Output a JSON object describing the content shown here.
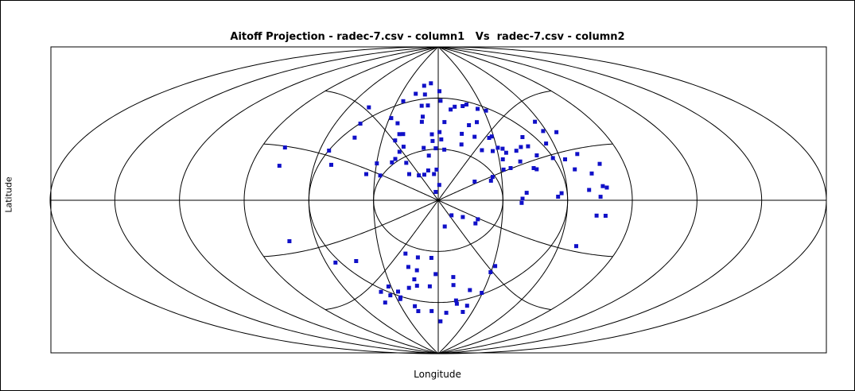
{
  "chart_data": {
    "type": "scatter",
    "projection": "aitoff",
    "title": "Aitoff Projection - radec-7.csv - column1   Vs  radec-7.csv - column2",
    "xlabel": "Longitude",
    "ylabel": "Latitude",
    "grid": true,
    "marker_color": "#1010c8",
    "points_lon_lat": [
      [
        2.4,
        -71.0
      ],
      [
        7.3,
        -66.0
      ],
      [
        9.6,
        -49.7
      ],
      [
        20.9,
        -52.5
      ],
      [
        29.5,
        -53.9
      ],
      [
        -5.8,
        -65.0
      ],
      [
        -17.5,
        -64.9
      ],
      [
        -18.9,
        -62.0
      ],
      [
        -27.0,
        -56.6
      ],
      [
        -26.9,
        -53.2
      ],
      [
        -18.9,
        -51.2
      ],
      [
        -13.5,
        -50.1
      ],
      [
        -14.4,
        -46.3
      ],
      [
        -12.0,
        -41.0
      ],
      [
        -10.7,
        -33.5
      ],
      [
        -3.6,
        -33.8
      ],
      [
        -1.5,
        -43.3
      ],
      [
        -5.4,
        -50.5
      ],
      [
        -16.5,
        -39.0
      ],
      [
        -40.2,
        -59.2
      ],
      [
        -38.3,
        -53.0
      ],
      [
        -33.3,
        -55.2
      ],
      [
        -27.7,
        -57.6
      ],
      [
        -31.7,
        -50.1
      ],
      [
        -16.9,
        -31.2
      ],
      [
        -43.7,
        -34.9
      ],
      [
        -55.0,
        -35.3
      ],
      [
        -73.0,
        -22.5
      ],
      [
        -78.2,
        28.8
      ],
      [
        -76.6,
        18.8
      ],
      [
        -55.3,
        28.1
      ],
      [
        -51.8,
        20.1
      ],
      [
        -44.9,
        35.9
      ],
      [
        -45.6,
        44.0
      ],
      [
        -46.8,
        53.4
      ],
      [
        -25.6,
        57.8
      ],
      [
        -28.9,
        47.8
      ],
      [
        -24.0,
        44.9
      ],
      [
        -21.4,
        38.6
      ],
      [
        -22.9,
        34.9
      ],
      [
        -17.9,
        31.3
      ],
      [
        -19.6,
        28.3
      ],
      [
        -21.2,
        24.1
      ],
      [
        -29.9,
        21.4
      ],
      [
        -34.2,
        15.1
      ],
      [
        -27.5,
        14.4
      ],
      [
        -13.8,
        15.3
      ],
      [
        -9.2,
        14.6
      ],
      [
        -15.6,
        21.9
      ],
      [
        -22.6,
        22.1
      ],
      [
        -19.3,
        38.7
      ],
      [
        -9.7,
        49.0
      ],
      [
        -7.2,
        55.6
      ],
      [
        -7.2,
        68.6
      ],
      [
        -13.2,
        67.1
      ],
      [
        -10.7,
        62.0
      ],
      [
        -18.3,
        62.3
      ],
      [
        -11.5,
        55.4
      ],
      [
        -9.8,
        46.0
      ],
      [
        -3.5,
        38.7
      ],
      [
        -7.5,
        30.7
      ],
      [
        -4.7,
        26.2
      ],
      [
        -4.8,
        17.5
      ],
      [
        -6.6,
        15.0
      ],
      [
        -2.0,
        15.4
      ],
      [
        -0.8,
        18.0
      ],
      [
        0.5,
        9.0
      ],
      [
        -1.2,
        4.9
      ],
      [
        3.1,
        29.7
      ],
      [
        -1.3,
        30.5
      ],
      [
        1.6,
        35.7
      ],
      [
        1.7,
        58.4
      ],
      [
        1.0,
        64.0
      ],
      [
        0.7,
        40.0
      ],
      [
        -3.0,
        34.8
      ],
      [
        3.7,
        45.9
      ],
      [
        8.3,
        53.2
      ],
      [
        11.3,
        54.8
      ],
      [
        16.9,
        55.1
      ],
      [
        19.9,
        56.0
      ],
      [
        26.4,
        53.3
      ],
      [
        31.4,
        52.1
      ],
      [
        23.0,
        45.6
      ],
      [
        17.9,
        43.9
      ],
      [
        13.0,
        38.9
      ],
      [
        12.1,
        32.7
      ],
      [
        19.7,
        37.1
      ],
      [
        22.2,
        29.2
      ],
      [
        27.6,
        28.6
      ],
      [
        34.2,
        27.5
      ],
      [
        39.6,
        28.5
      ],
      [
        40.1,
        22.3
      ],
      [
        42.5,
        30.6
      ],
      [
        46.3,
        30.9
      ],
      [
        49.1,
        25.6
      ],
      [
        56.6,
        23.8
      ],
      [
        56.2,
        32.1
      ],
      [
        45.4,
        36.2
      ],
      [
        57.2,
        44.5
      ],
      [
        58.3,
        39.1
      ],
      [
        65.1,
        38.1
      ],
      [
        29.0,
        37.1
      ],
      [
        30.6,
        30.5
      ],
      [
        32.9,
        29.9
      ],
      [
        31.8,
        23.7
      ],
      [
        31.3,
        17.8
      ],
      [
        34.8,
        18.6
      ],
      [
        25.7,
        13.6
      ],
      [
        24.8,
        11.4
      ],
      [
        17.1,
        10.9
      ],
      [
        27.4,
        36.3
      ],
      [
        45.9,
        18.4
      ],
      [
        47.2,
        17.7
      ],
      [
        62.3,
        22.9
      ],
      [
        65.4,
        17.2
      ],
      [
        69.4,
        25.6
      ],
      [
        78.2,
        19.8
      ],
      [
        72.9,
        14.7
      ],
      [
        76.8,
        7.7
      ],
      [
        78.6,
        6.9
      ],
      [
        75.3,
        1.9
      ],
      [
        70.2,
        5.7
      ],
      [
        57.3,
        4.0
      ],
      [
        55.6,
        2.0
      ],
      [
        41.1,
        4.3
      ],
      [
        39.1,
        0.9
      ],
      [
        38.7,
        -1.5
      ],
      [
        74.0,
        -8.4
      ],
      [
        78.2,
        -8.4
      ],
      [
        6.2,
        -8.8
      ],
      [
        11.5,
        -9.8
      ],
      [
        18.6,
        -11.1
      ],
      [
        17.6,
        -13.5
      ],
      [
        3.1,
        -15.4
      ],
      [
        68.8,
        -25.4
      ],
      [
        8.9,
        -45.0
      ],
      [
        31.2,
        -38.2
      ],
      [
        29.8,
        -41.8
      ],
      [
        21.8,
        -65.3
      ],
      [
        14.5,
        -60.6
      ],
      [
        13.3,
        -58.7
      ],
      [
        23.1,
        -61.6
      ]
    ]
  }
}
